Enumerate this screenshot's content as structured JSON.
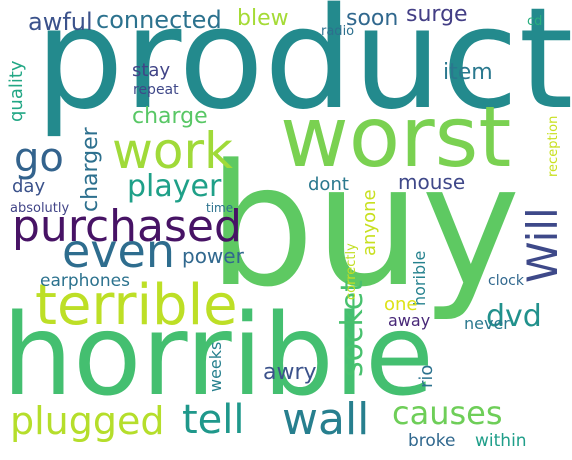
{
  "words": [
    {
      "text": "product",
      "color": "#238a8d"
    },
    {
      "text": "worst",
      "color": "#7ad151"
    },
    {
      "text": "buy",
      "color": "#5ec962"
    },
    {
      "text": "horrible",
      "color": "#44bf70"
    },
    {
      "text": "terrible",
      "color": "#bddf26"
    },
    {
      "text": "work",
      "color": "#a0da39"
    },
    {
      "text": "purchased",
      "color": "#471365"
    },
    {
      "text": "even",
      "color": "#2e6d8e"
    },
    {
      "text": "go",
      "color": "#33638d"
    },
    {
      "text": "player",
      "color": "#1fa088"
    },
    {
      "text": "Will",
      "color": "#3e4989"
    },
    {
      "text": "plugged",
      "color": "#b5de2b"
    },
    {
      "text": "tell",
      "color": "#1f988b"
    },
    {
      "text": "wall",
      "color": "#277f8e"
    },
    {
      "text": "causes",
      "color": "#6ece58"
    },
    {
      "text": "dvd",
      "color": "#21918c"
    },
    {
      "text": "socket",
      "color": "#48c16e"
    },
    {
      "text": "charger",
      "color": "#2d708e"
    },
    {
      "text": "awful",
      "color": "#3b528b"
    },
    {
      "text": "connected",
      "color": "#2c728e"
    },
    {
      "text": "blew",
      "color": "#a5db36"
    },
    {
      "text": "soon",
      "color": "#31688e"
    },
    {
      "text": "surge",
      "color": "#433e85"
    },
    {
      "text": "item",
      "color": "#2a788e"
    },
    {
      "text": "stay",
      "color": "#414487"
    },
    {
      "text": "charge",
      "color": "#58c765"
    },
    {
      "text": "quality",
      "color": "#22a785"
    },
    {
      "text": "repeat",
      "color": "#3f4889"
    },
    {
      "text": "radio",
      "color": "#2d708e"
    },
    {
      "text": "cd",
      "color": "#29af7f"
    },
    {
      "text": "day",
      "color": "#3b528b"
    },
    {
      "text": "dont",
      "color": "#2a788e"
    },
    {
      "text": "mouse",
      "color": "#3f4889"
    },
    {
      "text": "anyone",
      "color": "#c8e020"
    },
    {
      "text": "power",
      "color": "#31688e"
    },
    {
      "text": "earphones",
      "color": "#2c728e"
    },
    {
      "text": "absolutly",
      "color": "#414487"
    },
    {
      "text": "time",
      "color": "#2c728e"
    },
    {
      "text": "correctly",
      "color": "#c2df23"
    },
    {
      "text": "reception",
      "color": "#c8e020"
    },
    {
      "text": "clock",
      "color": "#31688e"
    },
    {
      "text": "horible",
      "color": "#26828e"
    },
    {
      "text": "one",
      "color": "#dde318"
    },
    {
      "text": "away",
      "color": "#482878"
    },
    {
      "text": "never",
      "color": "#2a788e"
    },
    {
      "text": "rio",
      "color": "#2c728e"
    },
    {
      "text": "weeks",
      "color": "#27808e"
    },
    {
      "text": "awry",
      "color": "#3b528b"
    },
    {
      "text": "broke",
      "color": "#31688e"
    },
    {
      "text": "within",
      "color": "#1f9e89"
    }
  ]
}
